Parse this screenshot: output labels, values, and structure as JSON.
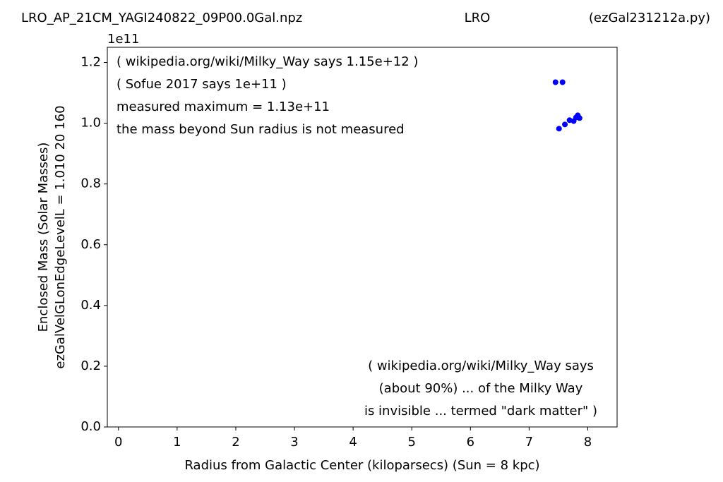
{
  "chart_data": {
    "type": "scatter",
    "title_left": "LRO_AP_21CM_YAGI240822_09P00.0Gal.npz",
    "title_center": "LRO",
    "title_right": "(ezGal231212a.py)",
    "x_label": "Radius from Galactic Center (kiloparsecs)  (Sun = 8 kpc)",
    "y_label": [
      "Enclosed Mass (Solar Masses)",
      "ezGalVelGLonEdgeLevelL = 1.010  20  160"
    ],
    "y_offset_label": "1e11",
    "annotations_top": [
      "( wikipedia.org/wiki/Milky_Way says 1.15e+12 )",
      "( Sofue 2017 says 1e+11 )",
      "measured maximum = 1.13e+11",
      "the mass beyond Sun radius is not measured"
    ],
    "annotations_bottom": [
      "( wikipedia.org/wiki/Milky_Way says",
      "(about 90%) ... of the Milky Way",
      "is invisible ... termed \"dark matter\" )"
    ],
    "series": [
      {
        "color": "#0000ff",
        "x": [
          7.45,
          7.57,
          7.51,
          7.61,
          7.69,
          7.76,
          7.8,
          7.83,
          7.86
        ],
        "values": [
          1.135,
          1.135,
          0.982,
          0.996,
          1.01,
          1.007,
          1.019,
          1.026,
          1.017
        ]
      }
    ],
    "xlim": [
      -0.19,
      8.5
    ],
    "xticks": [
      0,
      1,
      2,
      3,
      4,
      5,
      6,
      7,
      8
    ],
    "ylim": [
      0,
      1.25
    ],
    "yticks": [
      {
        "value": 0,
        "label": "0.0"
      },
      0.2,
      0.4,
      0.6,
      0.8,
      {
        "value": 1,
        "label": "1.0"
      },
      1.2
    ],
    "grid": false
  }
}
